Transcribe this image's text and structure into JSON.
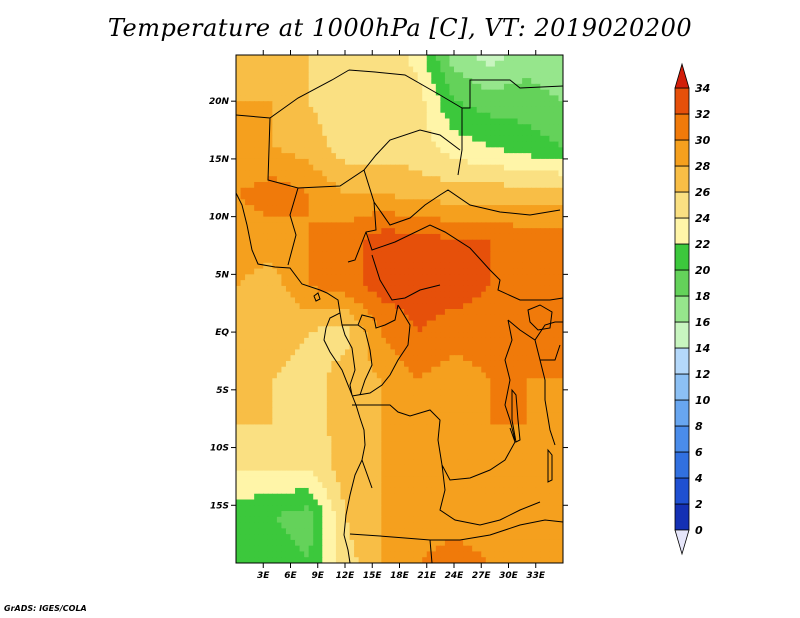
{
  "title": "Temperature at 1000hPa [C], VT: 2019020200",
  "credit": "GrADS: IGES/COLA",
  "map": {
    "lon_range": [
      0,
      36
    ],
    "lat_range": [
      -20,
      24
    ],
    "lat_ticks": [
      {
        "value": 20,
        "label": "20N"
      },
      {
        "value": 15,
        "label": "15N"
      },
      {
        "value": 10,
        "label": "10N"
      },
      {
        "value": 5,
        "label": "5N"
      },
      {
        "value": 0,
        "label": "EQ"
      },
      {
        "value": -5,
        "label": "5S"
      },
      {
        "value": -10,
        "label": "10S"
      },
      {
        "value": -15,
        "label": "15S"
      }
    ],
    "lon_ticks": [
      {
        "value": 3,
        "label": "3E"
      },
      {
        "value": 6,
        "label": "6E"
      },
      {
        "value": 9,
        "label": "9E"
      },
      {
        "value": 12,
        "label": "12E"
      },
      {
        "value": 15,
        "label": "15E"
      },
      {
        "value": 18,
        "label": "18E"
      },
      {
        "value": 21,
        "label": "21E"
      },
      {
        "value": 24,
        "label": "24E"
      },
      {
        "value": 27,
        "label": "27E"
      },
      {
        "value": 30,
        "label": "30E"
      },
      {
        "value": 33,
        "label": "33E"
      }
    ]
  },
  "colorbar": {
    "levels": [
      "0",
      "2",
      "4",
      "6",
      "8",
      "10",
      "12",
      "14",
      "16",
      "18",
      "20",
      "22",
      "24",
      "26",
      "28",
      "30",
      "32",
      "34"
    ],
    "colors": [
      "#0a0a70",
      "#1430b4",
      "#1f50d2",
      "#3170e0",
      "#4a8cea",
      "#68a6f0",
      "#8cc0f4",
      "#b4d8fa",
      "#c8f5c0",
      "#96e68c",
      "#64d25a",
      "#3cc83c",
      "#fff5a8",
      "#fae082",
      "#f8be46",
      "#f5a01e",
      "#f07a0a",
      "#e6500a",
      "#d21e0a"
    ],
    "under_color": "#e6e6fa",
    "over_color": "#d21e0a"
  },
  "chart_data": {
    "type": "heatmap",
    "variable": "Temperature at 1000hPa",
    "units": "C",
    "valid_time": "2019020200",
    "lon_range": [
      0,
      36
    ],
    "lat_range": [
      -20,
      24
    ],
    "contour_levels": [
      0,
      2,
      4,
      6,
      8,
      10,
      12,
      14,
      16,
      18,
      20,
      22,
      24,
      26,
      28,
      30,
      32,
      34
    ],
    "grid": {
      "lon_step": 4,
      "lat_step": 4,
      "lons": [
        0,
        4,
        8,
        12,
        16,
        20,
        24,
        28,
        32,
        36
      ],
      "lats": [
        24,
        20,
        16,
        12,
        8,
        4,
        0,
        -4,
        -8,
        -12,
        -16,
        -20
      ],
      "values": [
        [
          27,
          28,
          26,
          25,
          26,
          23,
          17,
          15,
          17,
          16
        ],
        [
          28,
          28,
          26,
          25,
          26,
          25,
          20,
          19,
          19,
          18
        ],
        [
          28,
          28,
          27,
          25,
          25,
          25,
          23,
          22,
          21,
          20
        ],
        [
          30,
          31,
          30,
          28,
          28,
          27,
          27,
          27,
          27,
          27
        ],
        [
          29,
          29,
          30,
          31,
          33,
          33,
          32,
          32,
          31,
          31
        ],
        [
          28,
          27,
          30,
          31,
          33,
          33,
          33,
          32,
          32,
          32
        ],
        [
          27,
          27,
          26,
          25,
          30,
          32,
          31,
          31,
          31,
          30
        ],
        [
          27,
          26,
          25,
          27,
          28,
          30,
          29,
          30,
          30,
          30
        ],
        [
          26,
          26,
          25,
          27,
          28,
          29,
          28,
          30,
          30,
          29
        ],
        [
          24,
          24,
          24,
          27,
          28,
          29,
          28,
          29,
          30,
          29
        ],
        [
          21,
          20,
          19,
          26,
          28,
          29,
          29,
          29,
          28,
          28
        ],
        [
          21,
          21,
          20,
          25,
          28,
          30,
          31,
          30,
          29,
          29
        ]
      ]
    }
  }
}
